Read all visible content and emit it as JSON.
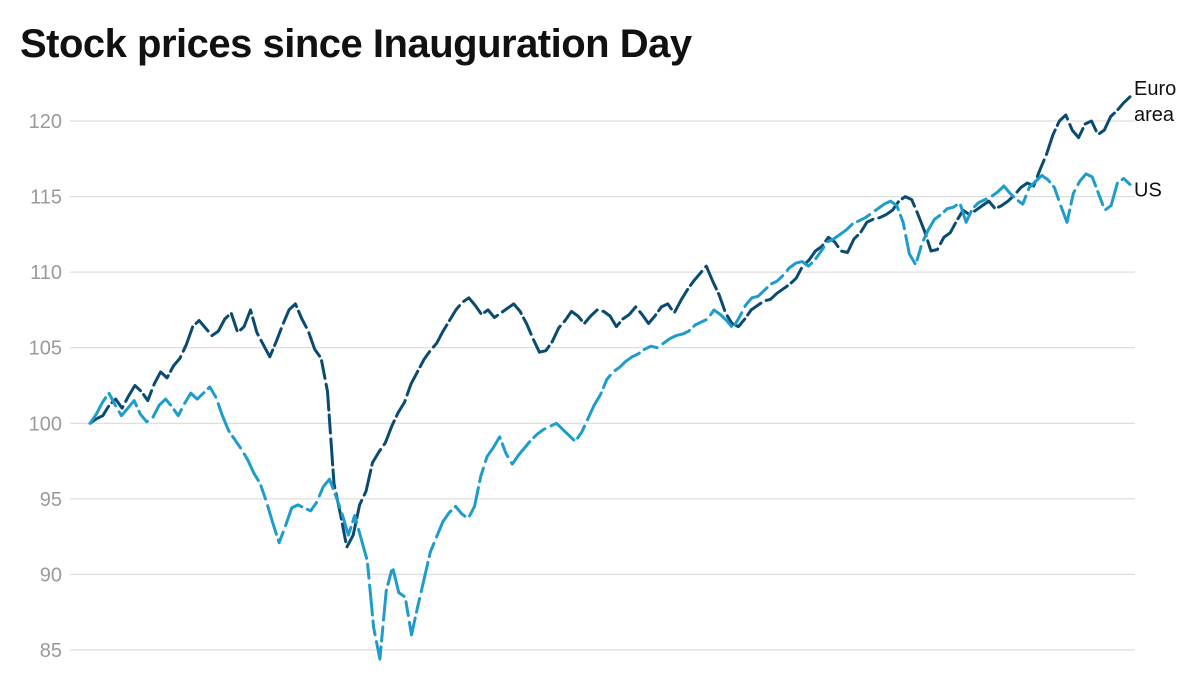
{
  "chart_data": {
    "type": "line",
    "title": "Stock prices since Inauguration Day",
    "xlabel": "",
    "ylabel": "",
    "ylim": [
      83,
      122
    ],
    "yticks": [
      85,
      90,
      95,
      100,
      105,
      110,
      115,
      120
    ],
    "grid": true,
    "legend": "inline-right",
    "series": [
      {
        "name": "Euro area",
        "label_lines": [
          "Euro",
          "area"
        ],
        "color": "#0b4b6f",
        "values": [
          100,
          100.3,
          100.5,
          101.2,
          101.6,
          101.0,
          101.8,
          102.5,
          102.1,
          101.5,
          102.6,
          103.4,
          103.0,
          103.8,
          104.3,
          105.2,
          106.4,
          106.8,
          106.3,
          105.8,
          106.1,
          106.9,
          107.3,
          106.0,
          106.4,
          107.5,
          106.0,
          105.2,
          104.4,
          105.4,
          106.5,
          107.5,
          107.9,
          106.9,
          106.1,
          104.9,
          104.3,
          102.1,
          96.0,
          94.0,
          91.8,
          92.6,
          94.6,
          95.5,
          97.4,
          98.1,
          98.7,
          99.8,
          100.7,
          101.4,
          102.6,
          103.4,
          104.2,
          104.8,
          105.3,
          106.1,
          106.8,
          107.5,
          108.0,
          108.3,
          107.8,
          107.2,
          107.5,
          107.0,
          107.3,
          107.6,
          107.9,
          107.4,
          106.6,
          105.6,
          104.7,
          104.8,
          105.4,
          106.3,
          106.8,
          107.4,
          107.1,
          106.6,
          107.1,
          107.5,
          107.4,
          107.1,
          106.4,
          106.9,
          107.2,
          107.7,
          107.2,
          106.6,
          107.1,
          107.7,
          107.9,
          107.3,
          108.1,
          108.8,
          109.4,
          109.9,
          110.4,
          109.4,
          108.5,
          107.3,
          106.6,
          106.4,
          106.9,
          107.5,
          107.8,
          108.1,
          108.2,
          108.6,
          108.9,
          109.2,
          109.6,
          110.4,
          110.8,
          111.4,
          111.7,
          112.3,
          112.0,
          111.4,
          111.3,
          112.2,
          112.6,
          113.3,
          113.5,
          113.6,
          113.8,
          114.1,
          114.7,
          115.0,
          114.8,
          113.8,
          112.7,
          111.4,
          111.5,
          112.3,
          112.6,
          113.4,
          114.1,
          113.8,
          114.1,
          114.4,
          114.7,
          114.2,
          114.4,
          114.7,
          115.1,
          115.6,
          115.9,
          115.7,
          116.8,
          117.8,
          119.1,
          120.0,
          120.4,
          119.4,
          118.9,
          119.8,
          120.0,
          119.1,
          119.4,
          120.3,
          120.7,
          121.2,
          121.6
        ],
        "end_value": 121.6
      },
      {
        "name": "US",
        "label_lines": [
          "US"
        ],
        "color": "#1e9ccc",
        "values": [
          100,
          100.6,
          101.4,
          102.0,
          101.2,
          100.5,
          101.0,
          101.5,
          100.6,
          100.1,
          100.4,
          101.2,
          101.6,
          101.1,
          100.5,
          101.3,
          102.0,
          101.6,
          102.0,
          102.4,
          101.7,
          100.5,
          99.5,
          98.9,
          98.3,
          97.6,
          96.7,
          96.0,
          94.8,
          93.4,
          92.1,
          93.2,
          94.4,
          94.6,
          94.4,
          94.2,
          94.8,
          95.8,
          96.3,
          95.2,
          94.0,
          92.6,
          93.9,
          92.4,
          90.9,
          86.5,
          84.4,
          88.9,
          90.5,
          88.8,
          88.5,
          86.0,
          87.9,
          89.7,
          91.5,
          92.5,
          93.5,
          94.1,
          94.5,
          94.0,
          93.7,
          94.5,
          96.5,
          97.8,
          98.4,
          99.1,
          98.0,
          97.3,
          97.9,
          98.4,
          98.9,
          99.3,
          99.6,
          99.8,
          100.0,
          99.6,
          99.2,
          98.8,
          99.4,
          100.3,
          101.2,
          101.9,
          102.9,
          103.4,
          103.7,
          104.1,
          104.4,
          104.6,
          104.9,
          105.1,
          105.0,
          105.3,
          105.6,
          105.8,
          105.9,
          106.1,
          106.5,
          106.7,
          106.9,
          107.5,
          107.2,
          106.8,
          106.3,
          107.0,
          107.8,
          108.3,
          108.4,
          108.8,
          109.2,
          109.4,
          109.8,
          110.3,
          110.6,
          110.7,
          110.4,
          110.8,
          111.4,
          112.0,
          112.2,
          112.5,
          112.8,
          113.2,
          113.4,
          113.6,
          113.9,
          114.2,
          114.5,
          114.7,
          114.4,
          113.3,
          111.2,
          110.5,
          111.9,
          112.8,
          113.5,
          113.8,
          114.2,
          114.3,
          114.6,
          113.3,
          114.2,
          114.6,
          114.8,
          115.0,
          115.3,
          115.7,
          115.2,
          114.8,
          114.5,
          115.6,
          116.0,
          116.4,
          116.1,
          115.6,
          114.4,
          113.3,
          115.2,
          116.0,
          116.5,
          116.3,
          115.2,
          114.1,
          114.4,
          115.9,
          116.2,
          115.8
        ],
        "end_value": 115.8
      }
    ]
  }
}
